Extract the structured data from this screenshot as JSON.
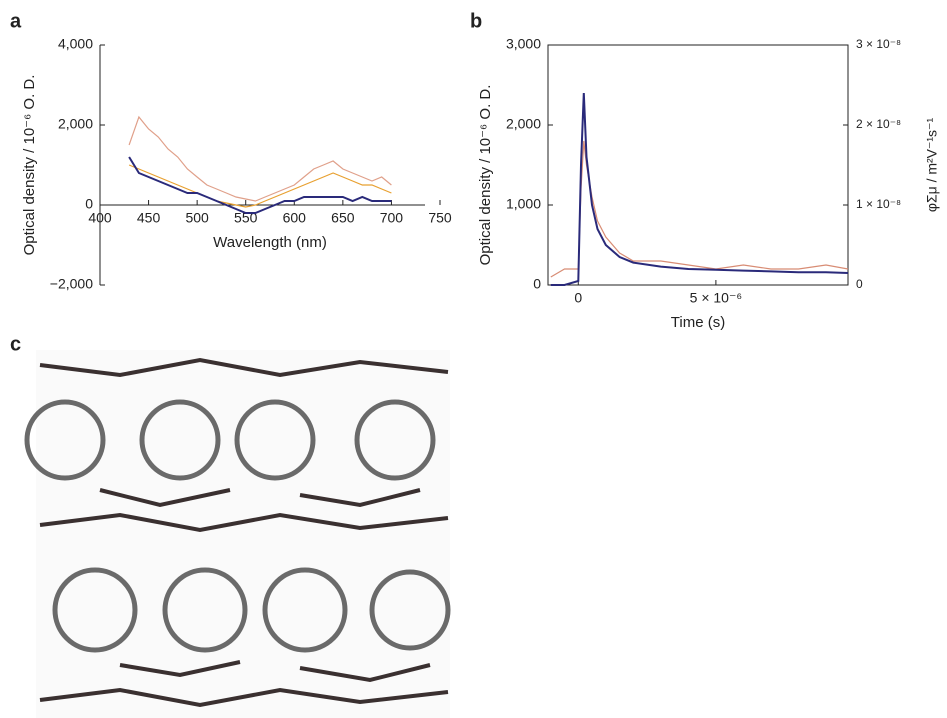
{
  "panel_labels": [
    "a",
    "b",
    "c"
  ],
  "chart_data": [
    {
      "type": "line",
      "xlabel": "Wavelength (nm)",
      "ylabel": "Optical density / 10⁻⁶ O. D.",
      "x": [
        430,
        440,
        450,
        460,
        470,
        480,
        490,
        500,
        510,
        520,
        530,
        540,
        550,
        560,
        570,
        580,
        590,
        600,
        610,
        620,
        630,
        640,
        650,
        660,
        670,
        680,
        690,
        700
      ],
      "series": [
        {
          "name": "pink",
          "color": "#e0a08a",
          "values": [
            1500,
            2200,
            1900,
            1700,
            1400,
            1200,
            900,
            700,
            500,
            400,
            300,
            200,
            150,
            100,
            200,
            300,
            400,
            500,
            700,
            900,
            1000,
            1100,
            900,
            800,
            700,
            600,
            700,
            500
          ]
        },
        {
          "name": "orange",
          "color": "#e8a030",
          "values": [
            1000,
            900,
            800,
            700,
            600,
            500,
            400,
            300,
            200,
            100,
            50,
            0,
            -50,
            0,
            100,
            200,
            300,
            400,
            500,
            600,
            700,
            800,
            700,
            600,
            500,
            500,
            400,
            300
          ]
        },
        {
          "name": "navy",
          "color": "#2a2a7a",
          "values": [
            1200,
            800,
            700,
            600,
            500,
            400,
            300,
            300,
            200,
            100,
            0,
            -100,
            -200,
            -200,
            -100,
            0,
            100,
            100,
            200,
            200,
            200,
            200,
            200,
            100,
            200,
            100,
            100,
            100
          ]
        }
      ],
      "xlim": [
        400,
        750
      ],
      "xticks": [
        400,
        450,
        500,
        550,
        600,
        650,
        700,
        750
      ],
      "ylim": [
        -2000,
        4000
      ],
      "yticks": [
        {
          "value": -2000,
          "label": "−2,000"
        },
        0,
        {
          "value": 2000,
          "label": "2,000"
        },
        {
          "value": 4000,
          "label": "4,000"
        }
      ],
      "axis_at_zero": true
    },
    {
      "type": "line",
      "xlabel": "Time (s)",
      "ylabel": "Optical density / 10⁻⁶ O. D.",
      "y2label": "φΣμ / m²V⁻¹s⁻¹",
      "x": [
        -1e-06,
        -5e-07,
        0,
        1e-07,
        2e-07,
        3e-07,
        5e-07,
        7e-07,
        1e-06,
        1.5e-06,
        2e-06,
        3e-06,
        4e-06,
        5e-06,
        6e-06,
        7e-06,
        8e-06,
        9e-06,
        9.8e-06
      ],
      "series": [
        {
          "name": "pink",
          "color": "#d88c74",
          "axis": "y2",
          "values": [
            1e-09,
            2e-09,
            2e-09,
            1.2e-08,
            1.8e-08,
            1.5e-08,
            1.1e-08,
            8e-09,
            6e-09,
            4e-09,
            3e-09,
            3e-09,
            2.5e-09,
            2e-09,
            2.5e-09,
            2e-09,
            2e-09,
            2.5e-09,
            2e-09
          ]
        },
        {
          "name": "navy",
          "color": "#2a2a7a",
          "values": [
            0,
            0,
            50,
            1500,
            2400,
            1600,
            1000,
            700,
            500,
            350,
            280,
            230,
            200,
            190,
            180,
            170,
            160,
            160,
            150
          ]
        }
      ],
      "xlim": [
        -1.1e-06,
        9.8e-06
      ],
      "xticks": [
        0,
        {
          "value": 5e-06,
          "label": "5 × 10⁻⁶"
        }
      ],
      "ylim": [
        0,
        3000
      ],
      "yticks": [
        0,
        {
          "value": 1000,
          "label": "1,000"
        },
        {
          "value": 2000,
          "label": "2,000"
        },
        {
          "value": 3000,
          "label": "3,000"
        }
      ],
      "y2lim": [
        0,
        3e-08
      ],
      "y2ticks": [
        0,
        {
          "value": 1e-08,
          "label": "1 × 10⁻⁸"
        },
        {
          "value": 2e-08,
          "label": "2 × 10⁻⁸"
        },
        {
          "value": 3e-08,
          "label": "3 × 10⁻⁸"
        }
      ],
      "frame": true
    }
  ]
}
